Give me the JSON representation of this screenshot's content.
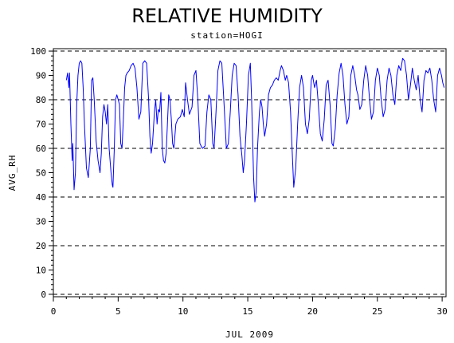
{
  "chart_data": {
    "type": "line",
    "title": "RELATIVE HUMIDITY",
    "subtitle": "station=HOGI",
    "xlabel": "JUL 2009",
    "ylabel": "AVG_RH",
    "xlim": [
      0,
      30.3
    ],
    "ylim": [
      -1,
      101
    ],
    "xticks": [
      0,
      5,
      10,
      15,
      20,
      25,
      30
    ],
    "yticks": [
      0,
      10,
      20,
      30,
      40,
      50,
      60,
      70,
      80,
      90,
      100
    ],
    "reference_lines": [
      0,
      20,
      40,
      60,
      80,
      100
    ],
    "series": [
      {
        "color": "#0000ff",
        "points": [
          [
            1.0,
            88
          ],
          [
            1.1,
            91
          ],
          [
            1.2,
            85
          ],
          [
            1.25,
            91
          ],
          [
            1.35,
            70
          ],
          [
            1.45,
            55
          ],
          [
            1.5,
            62
          ],
          [
            1.6,
            43
          ],
          [
            1.7,
            50
          ],
          [
            1.8,
            78
          ],
          [
            1.9,
            90
          ],
          [
            2.0,
            95
          ],
          [
            2.1,
            96
          ],
          [
            2.2,
            95
          ],
          [
            2.3,
            85
          ],
          [
            2.4,
            70
          ],
          [
            2.55,
            52
          ],
          [
            2.7,
            48
          ],
          [
            2.85,
            60
          ],
          [
            2.95,
            88
          ],
          [
            3.05,
            89
          ],
          [
            3.15,
            80
          ],
          [
            3.3,
            63
          ],
          [
            3.45,
            55
          ],
          [
            3.6,
            50
          ],
          [
            3.7,
            58
          ],
          [
            3.8,
            73
          ],
          [
            3.9,
            78
          ],
          [
            4.0,
            75
          ],
          [
            4.1,
            70
          ],
          [
            4.2,
            78
          ],
          [
            4.3,
            60
          ],
          [
            4.45,
            50
          ],
          [
            4.55,
            45
          ],
          [
            4.6,
            44
          ],
          [
            4.7,
            60
          ],
          [
            4.8,
            80
          ],
          [
            4.9,
            82
          ],
          [
            5.0,
            80
          ],
          [
            5.1,
            78
          ],
          [
            5.2,
            62
          ],
          [
            5.3,
            60
          ],
          [
            5.4,
            72
          ],
          [
            5.5,
            85
          ],
          [
            5.6,
            90
          ],
          [
            5.7,
            91
          ],
          [
            5.85,
            92
          ],
          [
            6.0,
            94
          ],
          [
            6.15,
            95
          ],
          [
            6.3,
            93
          ],
          [
            6.45,
            85
          ],
          [
            6.6,
            72
          ],
          [
            6.75,
            75
          ],
          [
            6.9,
            95
          ],
          [
            7.05,
            96
          ],
          [
            7.2,
            95
          ],
          [
            7.35,
            80
          ],
          [
            7.45,
            65
          ],
          [
            7.55,
            58
          ],
          [
            7.65,
            62
          ],
          [
            7.8,
            75
          ],
          [
            7.9,
            80
          ],
          [
            8.0,
            70
          ],
          [
            8.1,
            76
          ],
          [
            8.2,
            75
          ],
          [
            8.3,
            83
          ],
          [
            8.4,
            60
          ],
          [
            8.5,
            55
          ],
          [
            8.6,
            54
          ],
          [
            8.7,
            58
          ],
          [
            8.8,
            70
          ],
          [
            8.9,
            82
          ],
          [
            9.0,
            80
          ],
          [
            9.1,
            72
          ],
          [
            9.2,
            62
          ],
          [
            9.3,
            60
          ],
          [
            9.45,
            70
          ],
          [
            9.6,
            72
          ],
          [
            9.8,
            73
          ],
          [
            9.95,
            76
          ],
          [
            10.1,
            73
          ],
          [
            10.2,
            87
          ],
          [
            10.35,
            80
          ],
          [
            10.5,
            74
          ],
          [
            10.7,
            77
          ],
          [
            10.85,
            90
          ],
          [
            11.0,
            92
          ],
          [
            11.15,
            80
          ],
          [
            11.3,
            62
          ],
          [
            11.5,
            60
          ],
          [
            11.7,
            61
          ],
          [
            11.85,
            75
          ],
          [
            12.0,
            82
          ],
          [
            12.15,
            80
          ],
          [
            12.3,
            62
          ],
          [
            12.4,
            60
          ],
          [
            12.55,
            75
          ],
          [
            12.7,
            92
          ],
          [
            12.85,
            96
          ],
          [
            13.0,
            95
          ],
          [
            13.15,
            80
          ],
          [
            13.35,
            60
          ],
          [
            13.5,
            62
          ],
          [
            13.65,
            75
          ],
          [
            13.8,
            90
          ],
          [
            13.95,
            95
          ],
          [
            14.1,
            94
          ],
          [
            14.25,
            82
          ],
          [
            14.4,
            65
          ],
          [
            14.55,
            57
          ],
          [
            14.65,
            50
          ],
          [
            14.75,
            55
          ],
          [
            14.9,
            70
          ],
          [
            15.05,
            90
          ],
          [
            15.2,
            95
          ],
          [
            15.3,
            80
          ],
          [
            15.45,
            48
          ],
          [
            15.55,
            38
          ],
          [
            15.65,
            42
          ],
          [
            15.75,
            60
          ],
          [
            15.9,
            75
          ],
          [
            16.0,
            80
          ],
          [
            16.1,
            77
          ],
          [
            16.2,
            70
          ],
          [
            16.3,
            65
          ],
          [
            16.45,
            70
          ],
          [
            16.6,
            82
          ],
          [
            16.75,
            85
          ],
          [
            16.9,
            86
          ],
          [
            17.05,
            88
          ],
          [
            17.2,
            89
          ],
          [
            17.35,
            88
          ],
          [
            17.5,
            92
          ],
          [
            17.6,
            94
          ],
          [
            17.75,
            92
          ],
          [
            17.9,
            88
          ],
          [
            18.0,
            90
          ],
          [
            18.15,
            87
          ],
          [
            18.3,
            75
          ],
          [
            18.45,
            56
          ],
          [
            18.55,
            44
          ],
          [
            18.7,
            52
          ],
          [
            18.85,
            70
          ],
          [
            19.0,
            85
          ],
          [
            19.15,
            90
          ],
          [
            19.3,
            85
          ],
          [
            19.45,
            70
          ],
          [
            19.6,
            66
          ],
          [
            19.75,
            72
          ],
          [
            19.9,
            88
          ],
          [
            20.0,
            90
          ],
          [
            20.15,
            85
          ],
          [
            20.3,
            88
          ],
          [
            20.45,
            78
          ],
          [
            20.6,
            66
          ],
          [
            20.75,
            63
          ],
          [
            20.9,
            72
          ],
          [
            21.05,
            86
          ],
          [
            21.2,
            88
          ],
          [
            21.35,
            78
          ],
          [
            21.5,
            62
          ],
          [
            21.6,
            61
          ],
          [
            21.75,
            68
          ],
          [
            21.9,
            82
          ],
          [
            22.05,
            91
          ],
          [
            22.2,
            95
          ],
          [
            22.35,
            90
          ],
          [
            22.5,
            78
          ],
          [
            22.65,
            70
          ],
          [
            22.8,
            73
          ],
          [
            22.95,
            90
          ],
          [
            23.1,
            94
          ],
          [
            23.25,
            90
          ],
          [
            23.4,
            84
          ],
          [
            23.5,
            82
          ],
          [
            23.65,
            76
          ],
          [
            23.8,
            78
          ],
          [
            23.95,
            88
          ],
          [
            24.1,
            94
          ],
          [
            24.25,
            90
          ],
          [
            24.4,
            80
          ],
          [
            24.55,
            72
          ],
          [
            24.7,
            75
          ],
          [
            24.85,
            88
          ],
          [
            25.0,
            93
          ],
          [
            25.15,
            90
          ],
          [
            25.3,
            80
          ],
          [
            25.45,
            73
          ],
          [
            25.6,
            76
          ],
          [
            25.75,
            88
          ],
          [
            25.9,
            93
          ],
          [
            26.05,
            90
          ],
          [
            26.2,
            82
          ],
          [
            26.35,
            78
          ],
          [
            26.5,
            90
          ],
          [
            26.65,
            94
          ],
          [
            26.8,
            92
          ],
          [
            26.95,
            97
          ],
          [
            27.1,
            96
          ],
          [
            27.25,
            90
          ],
          [
            27.4,
            80
          ],
          [
            27.55,
            86
          ],
          [
            27.7,
            93
          ],
          [
            27.85,
            88
          ],
          [
            28.0,
            84
          ],
          [
            28.15,
            90
          ],
          [
            28.3,
            80
          ],
          [
            28.45,
            75
          ],
          [
            28.6,
            88
          ],
          [
            28.75,
            92
          ],
          [
            28.9,
            91
          ],
          [
            29.05,
            93
          ],
          [
            29.2,
            88
          ],
          [
            29.35,
            80
          ],
          [
            29.5,
            75
          ],
          [
            29.65,
            90
          ],
          [
            29.8,
            93
          ],
          [
            29.95,
            90
          ],
          [
            30.05,
            87
          ],
          [
            30.15,
            85
          ]
        ]
      }
    ]
  }
}
